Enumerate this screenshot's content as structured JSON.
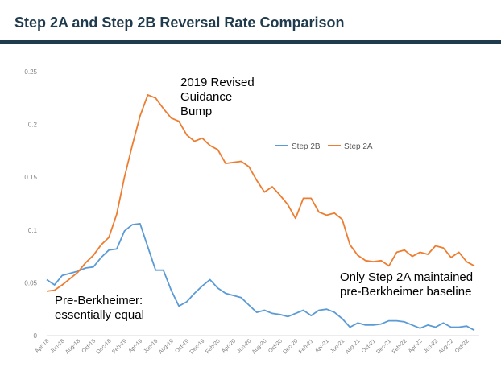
{
  "title": "Step 2A and Step 2B Reversal Rate Comparison",
  "colors": {
    "title": "#1f3b4d",
    "step2b": "#5b9bd5",
    "step2a": "#ed7d31",
    "axis": "#d9d9d9",
    "tick": "#7f7f7f"
  },
  "annotations": {
    "guidance": "2019 Revised\nGuidance\nBump",
    "pre": "Pre-Berkheimer:\nessentially equal",
    "baseline": "Only Step 2A maintained\npre-Berkheimer baseline"
  },
  "chart_data": {
    "type": "line",
    "ylim": [
      0,
      0.25
    ],
    "y_ticks": [
      "0",
      "0.05",
      "0.1",
      "0.15",
      "0.2",
      "0.25"
    ],
    "y_tick_values": [
      0,
      0.05,
      0.1,
      0.15,
      0.2,
      0.25
    ],
    "x_tick_labels": [
      "Apr-18",
      "Jun-18",
      "Aug-18",
      "Oct-18",
      "Dec-18",
      "Feb-19",
      "Apr-19",
      "Jun-19",
      "Aug-19",
      "Oct-19",
      "Dec-19",
      "Feb-20",
      "Apr-20",
      "Jun-20",
      "Aug-20",
      "Oct-20",
      "Dec-20",
      "Feb-21",
      "Apr-21",
      "Jun-21",
      "Aug-21",
      "Oct-21",
      "Dec-21",
      "Feb-22",
      "Apr-22",
      "Jun-22",
      "Aug-22",
      "Oct-22"
    ],
    "x_tick_months": [
      0,
      2,
      4,
      6,
      8,
      10,
      12,
      14,
      16,
      18,
      20,
      22,
      24,
      26,
      28,
      30,
      32,
      34,
      36,
      38,
      40,
      42,
      44,
      46,
      48,
      50,
      52,
      54
    ],
    "x_range_months": [
      0,
      55
    ],
    "grid": false,
    "legend_position": "top-right",
    "series": [
      {
        "name": "Step 2B",
        "color": "#5b9bd5",
        "values": [
          0.053,
          0.048,
          0.057,
          0.059,
          0.061,
          0.064,
          0.065,
          0.074,
          0.081,
          0.082,
          0.099,
          0.105,
          0.106,
          0.084,
          0.062,
          0.062,
          0.043,
          0.028,
          0.032,
          0.04,
          0.047,
          0.053,
          0.045,
          0.04,
          0.038,
          0.036,
          0.029,
          0.022,
          0.024,
          0.021,
          0.02,
          0.018,
          0.021,
          0.024,
          0.019,
          0.024,
          0.025,
          0.022,
          0.016,
          0.008,
          0.012,
          0.01,
          0.01,
          0.011,
          0.014,
          0.014,
          0.013,
          0.01,
          0.007,
          0.01,
          0.008,
          0.012,
          0.008,
          0.008,
          0.009,
          0.005
        ]
      },
      {
        "name": "Step 2A",
        "color": "#ed7d31",
        "values": [
          0.042,
          0.043,
          0.048,
          0.054,
          0.06,
          0.069,
          0.076,
          0.086,
          0.093,
          0.115,
          0.15,
          0.18,
          0.208,
          0.228,
          0.225,
          0.215,
          0.206,
          0.203,
          0.19,
          0.184,
          0.187,
          0.18,
          0.176,
          0.163,
          0.164,
          0.165,
          0.16,
          0.147,
          0.136,
          0.141,
          0.133,
          0.124,
          0.111,
          0.13,
          0.13,
          0.117,
          0.114,
          0.116,
          0.11,
          0.086,
          0.076,
          0.071,
          0.07,
          0.071,
          0.066,
          0.079,
          0.081,
          0.075,
          0.079,
          0.077,
          0.085,
          0.083,
          0.074,
          0.079,
          0.07,
          0.066
        ]
      }
    ]
  }
}
